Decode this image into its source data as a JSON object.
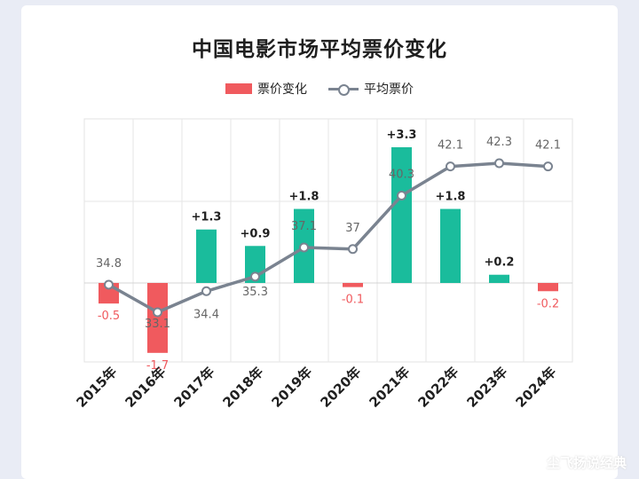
{
  "title": "中国电影市场平均票价变化",
  "watermark": "尘飞扬说经典",
  "chart_data": {
    "type": "bar+line",
    "title": "中国电影市场平均票价变化",
    "categories": [
      "2015年",
      "2016年",
      "2017年",
      "2018年",
      "2019年",
      "2020年",
      "2021年",
      "2022年",
      "2023年",
      "2024年"
    ],
    "series": [
      {
        "name": "票价变化",
        "type": "bar",
        "color": "#f05a5e",
        "positive_color": "#1abc9c",
        "values": [
          -0.5,
          -1.7,
          1.3,
          0.9,
          1.8,
          -0.1,
          3.3,
          1.8,
          0.2,
          -0.2
        ],
        "labels": [
          "-0.5",
          "-1.7",
          "+1.3",
          "+0.9",
          "+1.8",
          "-0.1",
          "+3.3",
          "+1.8",
          "+0.2",
          "-0.2"
        ]
      },
      {
        "name": "平均票价",
        "type": "line",
        "color": "#7a8390",
        "values": [
          34.8,
          33.1,
          34.4,
          35.3,
          37.1,
          37,
          40.3,
          42.1,
          42.3,
          42.1
        ],
        "labels": [
          "34.8",
          "33.1",
          "34.4",
          "35.3",
          "37.1",
          "37",
          "40.3",
          "42.1",
          "42.3",
          "42.1"
        ]
      }
    ],
    "legend": "top-center",
    "grid": true
  }
}
